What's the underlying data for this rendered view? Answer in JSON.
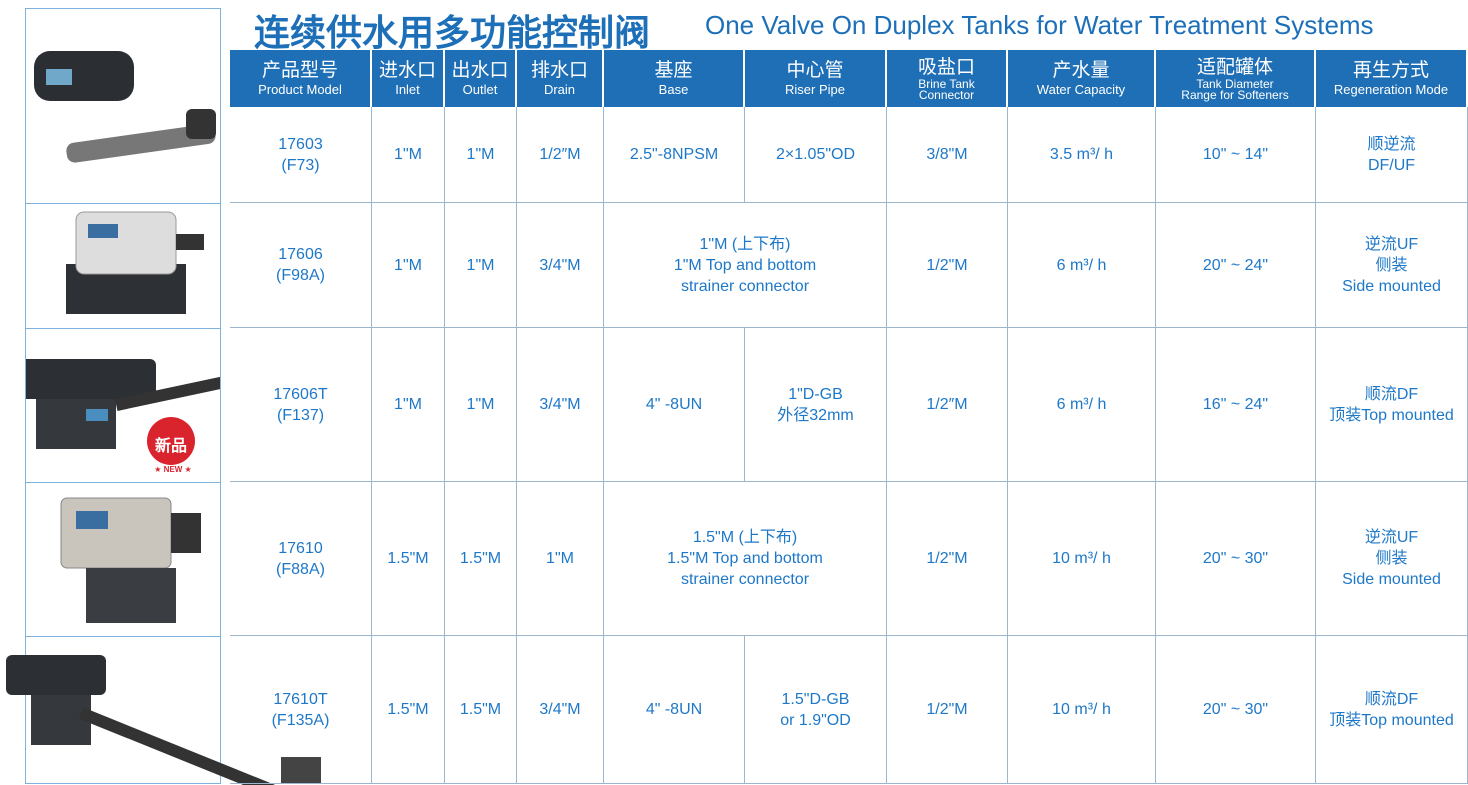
{
  "header": {
    "title_zh": "连续供水用多功能控制阀",
    "title_en": "One Valve On Duplex Tanks for Water Treatment Systems"
  },
  "table": {
    "columns": [
      {
        "zh": "产品型号",
        "en": [
          "Product Model"
        ]
      },
      {
        "zh": "进水口",
        "en": [
          "Inlet"
        ]
      },
      {
        "zh": "出水口",
        "en": [
          "Outlet"
        ]
      },
      {
        "zh": "排水口",
        "en": [
          "Drain"
        ]
      },
      {
        "zh": "基座",
        "en": [
          "Base"
        ]
      },
      {
        "zh": "中心管",
        "en": [
          "Riser Pipe"
        ]
      },
      {
        "zh": "吸盐口",
        "en": [
          "Brine Tank",
          "Connector"
        ]
      },
      {
        "zh": "产水量",
        "en": [
          "Water Capacity"
        ]
      },
      {
        "zh": "适配罐体",
        "en": [
          "Tank Diameter",
          "Range for Softeners"
        ]
      },
      {
        "zh": "再生方式",
        "en": [
          "Regeneration Mode"
        ]
      }
    ],
    "rows": [
      [
        [
          "17603",
          "(F73)"
        ],
        [
          "1\"M"
        ],
        [
          "1\"M"
        ],
        [
          "1/2″M"
        ],
        [
          "2.5\"-8NPSM"
        ],
        [
          "2×1.05\"OD"
        ],
        [
          "3/8\"M"
        ],
        [
          "3.5 m³/ h"
        ],
        [
          "10\" ~ 14\""
        ],
        [
          "顺逆流",
          "DF/UF"
        ]
      ],
      [
        [
          "17606",
          "(F98A)"
        ],
        [
          "1\"M"
        ],
        [
          "1\"M"
        ],
        [
          "3/4\"M"
        ],
        [
          "1\"M (上下布)",
          "1\"M Top and bottom",
          "strainer connector"
        ],
        [
          "1/2\"M"
        ],
        [
          "6 m³/ h"
        ],
        [
          "20\" ~ 24\""
        ],
        [
          "逆流UF",
          "侧装",
          "Side mounted"
        ]
      ],
      [
        [
          "17606T",
          "(F137)"
        ],
        [
          "1\"M"
        ],
        [
          "1\"M"
        ],
        [
          "3/4\"M"
        ],
        [
          "4\" -8UN"
        ],
        [
          "1\"D-GB",
          "外径32mm"
        ],
        [
          "1/2″M"
        ],
        [
          "6 m³/ h"
        ],
        [
          "16\" ~ 24\""
        ],
        [
          "顺流DF",
          "顶装Top mounted"
        ]
      ],
      [
        [
          "17610",
          "(F88A)"
        ],
        [
          "1.5\"M"
        ],
        [
          "1.5\"M"
        ],
        [
          "1\"M"
        ],
        [
          "1.5\"M (上下布)",
          "1.5\"M Top and bottom",
          "strainer connector"
        ],
        [
          "1/2\"M"
        ],
        [
          "10 m³/ h"
        ],
        [
          "20\" ~ 30\""
        ],
        [
          "逆流UF",
          "侧装",
          "Side mounted"
        ]
      ],
      [
        [
          "17610T",
          "(F135A)"
        ],
        [
          "1.5\"M"
        ],
        [
          "1.5\"M"
        ],
        [
          "3/4\"M"
        ],
        [
          "4\" -8UN"
        ],
        [
          "1.5\"D-GB",
          "or 1.9\"OD"
        ],
        [
          "1/2\"M"
        ],
        [
          "10 m³/ h"
        ],
        [
          "20\" ~ 30\""
        ],
        [
          "顺流DF",
          "顶装Top mounted"
        ]
      ]
    ]
  },
  "badge": {
    "zh": "新品",
    "en": "★ NEW ★"
  }
}
